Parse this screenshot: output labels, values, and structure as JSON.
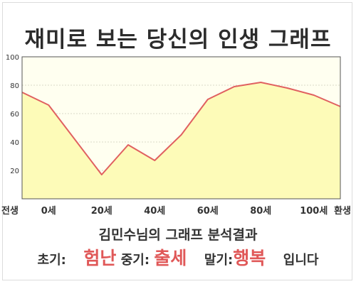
{
  "title": "재미로 보는 당신의 인생 그래프",
  "analysis_title": "김민수님의 그래프 분석결과",
  "result": {
    "early_label": "초기:",
    "early_value": "험난",
    "mid_label": "중기:",
    "mid_value": "출세",
    "late_label": "말기:",
    "late_value": "행복",
    "suffix": "입니다"
  },
  "colors": {
    "line": "#e06060",
    "fill": "#fdfbb8",
    "plot_bg": "#fffff0",
    "highlight": "#e05858"
  },
  "chart_data": {
    "type": "area",
    "x": [
      -10,
      0,
      20,
      30,
      40,
      50,
      60,
      70,
      80,
      90,
      100,
      110
    ],
    "values": [
      75,
      66,
      17,
      38,
      27,
      45,
      70,
      79,
      82,
      78,
      73,
      65
    ],
    "xticks": [
      {
        "label": "전생",
        "x": -10
      },
      {
        "label": "0세",
        "x": 0
      },
      {
        "label": "20세",
        "x": 20
      },
      {
        "label": "40세",
        "x": 40
      },
      {
        "label": "60세",
        "x": 60
      },
      {
        "label": "80세",
        "x": 80
      },
      {
        "label": "100세",
        "x": 100
      },
      {
        "label": "환생",
        "x": 110
      }
    ],
    "yticks": [
      20,
      40,
      60,
      80,
      100
    ],
    "xlim": [
      -10,
      110
    ],
    "ylim": [
      0,
      100
    ],
    "grid": true,
    "title": "재미로 보는 당신의 인생 그래프"
  }
}
